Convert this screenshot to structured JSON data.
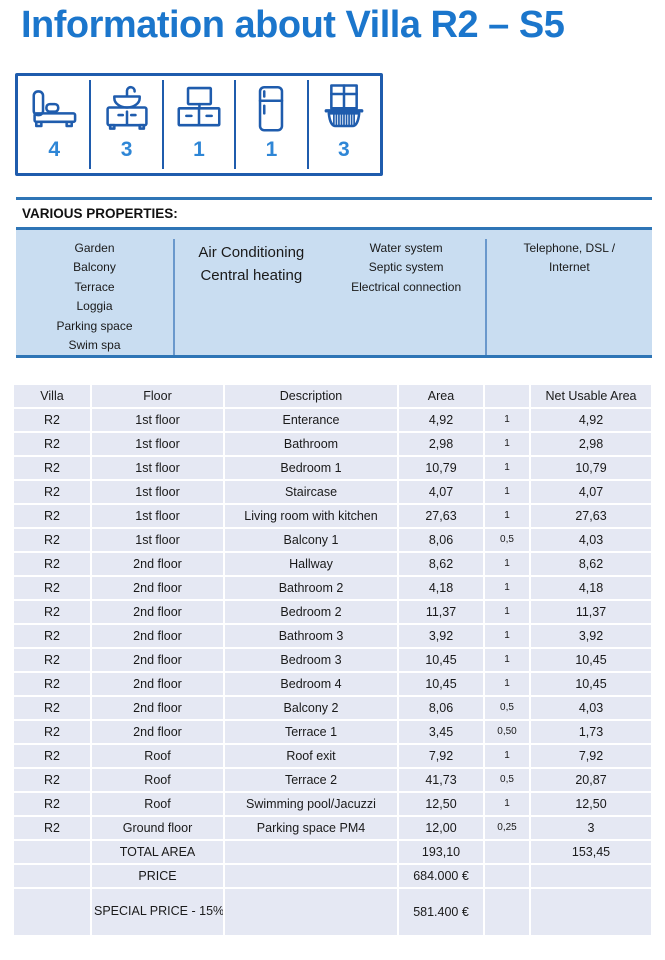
{
  "title": "Information about Villa R2 – S5",
  "amenities": {
    "items": [
      {
        "icon": "bed-icon",
        "count": "4"
      },
      {
        "icon": "washbasin-icon",
        "count": "3"
      },
      {
        "icon": "tv-stand-icon",
        "count": "1"
      },
      {
        "icon": "fridge-icon",
        "count": "1"
      },
      {
        "icon": "balcony-icon",
        "count": "3"
      }
    ]
  },
  "properties_section": {
    "heading": "VARIOUS PROPERTIES:",
    "columns": [
      {
        "lines": [
          "Garden",
          "Balcony",
          "Terrace",
          "Loggia",
          "Parking space",
          "Swim spa"
        ]
      },
      {
        "lines": [
          "Air Conditioning",
          "Central heating"
        ]
      },
      {
        "lines": [
          "Water system",
          "Septic system",
          "Electrical connection"
        ]
      },
      {
        "lines": [
          "Telephone, DSL /",
          "Internet"
        ]
      }
    ]
  },
  "area_table": {
    "headers": [
      "Villa",
      "Floor",
      "Description",
      "Area",
      "",
      "Net Usable Area"
    ],
    "rows": [
      [
        "R2",
        "1st floor",
        "Enterance",
        "4,92",
        "1",
        "4,92"
      ],
      [
        "R2",
        "1st floor",
        "Bathroom",
        "2,98",
        "1",
        "2,98"
      ],
      [
        "R2",
        "1st floor",
        "Bedroom 1",
        "10,79",
        "1",
        "10,79"
      ],
      [
        "R2",
        "1st floor",
        "Staircase",
        "4,07",
        "1",
        "4,07"
      ],
      [
        "R2",
        "1st floor",
        "Living room with kitchen",
        "27,63",
        "1",
        "27,63"
      ],
      [
        "R2",
        "1st floor",
        "Balcony 1",
        "8,06",
        "0,5",
        "4,03"
      ],
      [
        "R2",
        "2nd floor",
        "Hallway",
        "8,62",
        "1",
        "8,62"
      ],
      [
        "R2",
        "2nd floor",
        "Bathroom 2",
        "4,18",
        "1",
        "4,18"
      ],
      [
        "R2",
        "2nd floor",
        "Bedroom 2",
        "11,37",
        "1",
        "11,37"
      ],
      [
        "R2",
        "2nd floor",
        "Bathroom 3",
        "3,92",
        "1",
        "3,92"
      ],
      [
        "R2",
        "2nd floor",
        "Bedroom 3",
        "10,45",
        "1",
        "10,45"
      ],
      [
        "R2",
        "2nd floor",
        "Bedroom 4",
        "10,45",
        "1",
        "10,45"
      ],
      [
        "R2",
        "2nd floor",
        "Balcony 2",
        "8,06",
        "0,5",
        "4,03"
      ],
      [
        "R2",
        "2nd floor",
        "Terrace 1",
        "3,45",
        "0,50",
        "1,73"
      ],
      [
        "R2",
        "Roof",
        "Roof exit",
        "7,92",
        "1",
        "7,92"
      ],
      [
        "R2",
        "Roof",
        "Terrace 2",
        "41,73",
        "0,5",
        "20,87"
      ],
      [
        "R2",
        "Roof",
        "Swimming pool/Jacuzzi",
        "12,50",
        "1",
        "12,50"
      ],
      [
        "R2",
        "Ground floor",
        "Parking space PM4",
        "12,00",
        "0,25",
        "3"
      ]
    ],
    "total_row": {
      "label": "TOTAL AREA",
      "area": "193,10",
      "net": "153,45"
    },
    "price_row": {
      "label": "PRICE",
      "value": "684.000 €"
    },
    "special_price_row": {
      "label": "SPECIAL PRICE - 15%",
      "value": "581.400 €"
    }
  },
  "colors": {
    "title_blue": "#1b76cc",
    "icon_blue": "#1f5cad",
    "count_blue": "#2e86d6",
    "rule_blue": "#2e75b6",
    "properties_bg": "#c9ddf1",
    "table_row_bg": "#e5e8f3"
  }
}
